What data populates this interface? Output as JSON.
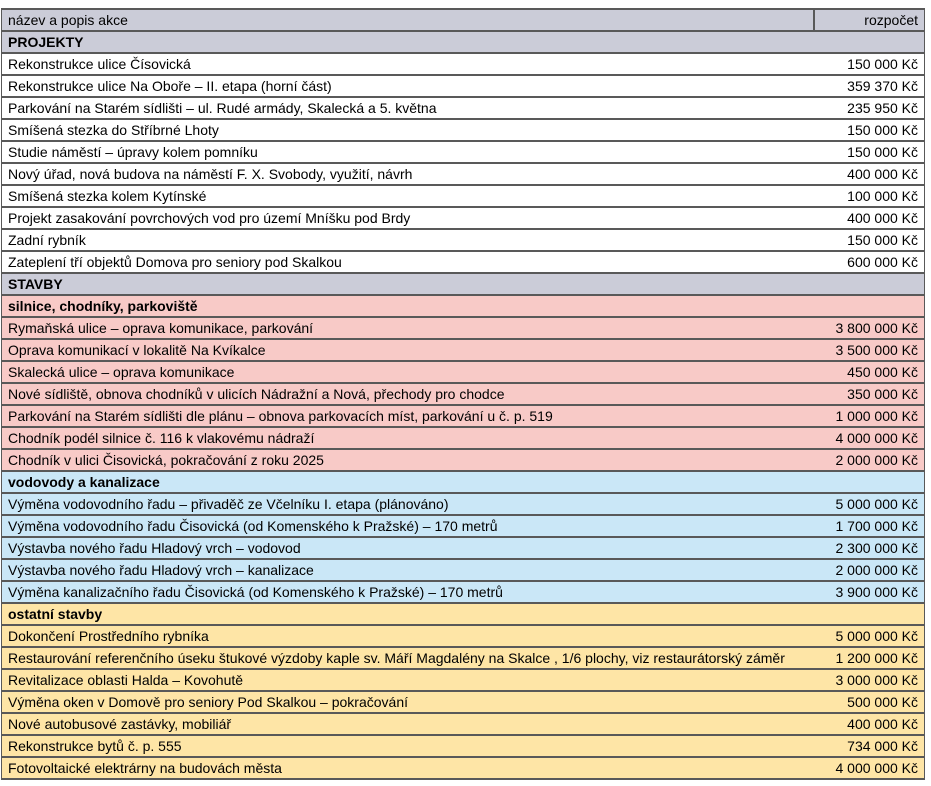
{
  "table": {
    "border_color": "#595959",
    "styles": {
      "gray": "#cbccd8",
      "pink": "#f8cac7",
      "blue": "#cae7f7",
      "yellow": "#fee5a6",
      "white": "#ffffff"
    },
    "columns": [
      {
        "key": "name",
        "label": "název a popis akce"
      },
      {
        "key": "budget",
        "label": "rozpočet"
      }
    ],
    "rows": [
      {
        "kind": "section",
        "style": "gray",
        "name": "PROJEKTY",
        "budget": ""
      },
      {
        "kind": "item",
        "style": "white",
        "name": "Rekonstrukce ulice Čísovická",
        "budget": "150 000 Kč"
      },
      {
        "kind": "item",
        "style": "white",
        "name": "Rekonstrukce ulice Na Oboře – II. etapa (horní část)",
        "budget": "359 370 Kč"
      },
      {
        "kind": "item",
        "style": "white",
        "name": "Parkování na Starém sídlišti – ul. Rudé armády, Skalecká a 5. května",
        "budget": "235 950 Kč"
      },
      {
        "kind": "item",
        "style": "white",
        "name": "Smíšená stezka do Stříbrné Lhoty",
        "budget": "150 000 Kč"
      },
      {
        "kind": "item",
        "style": "white",
        "name": "Studie náměstí – úpravy kolem pomníku",
        "budget": "150 000 Kč"
      },
      {
        "kind": "item",
        "style": "white",
        "name": "Nový úřad, nová budova na náměstí F. X. Svobody, využití, návrh",
        "budget": "400 000 Kč"
      },
      {
        "kind": "item",
        "style": "white",
        "name": "Smíšená stezka kolem Kytínské",
        "budget": "100 000 Kč"
      },
      {
        "kind": "item",
        "style": "white",
        "name": "Projekt zasakování povrchových vod pro území Mníšku pod Brdy",
        "budget": "400 000 Kč"
      },
      {
        "kind": "item",
        "style": "white",
        "name": "Zadní rybník",
        "budget": "150 000 Kč"
      },
      {
        "kind": "item",
        "style": "white",
        "name": "Zateplení tří objektů Domova pro seniory pod Skalkou",
        "budget": "600 000 Kč"
      },
      {
        "kind": "section",
        "style": "gray",
        "name": "STAVBY",
        "budget": ""
      },
      {
        "kind": "section",
        "style": "pink",
        "name": "silnice, chodníky, parkoviště",
        "budget": ""
      },
      {
        "kind": "item",
        "style": "pink",
        "name": "Rymaňská ulice – oprava komunikace, parkování",
        "budget": "3 800 000 Kč"
      },
      {
        "kind": "item",
        "style": "pink",
        "name": "Oprava komunikací v lokalitě Na Kvíkalce",
        "budget": "3 500 000 Kč"
      },
      {
        "kind": "item",
        "style": "pink",
        "name": "Skalecká ulice – oprava komunikace",
        "budget": "450 000 Kč"
      },
      {
        "kind": "item",
        "style": "pink",
        "name": "Nové sídliště, obnova chodníků v ulicích Nádražní a Nová, přechody pro chodce",
        "budget": "350 000 Kč"
      },
      {
        "kind": "item",
        "style": "pink",
        "name": "Parkování na Starém sídlišti dle plánu – obnova parkovacích míst, parkování u č. p. 519",
        "budget": "1 000 000 Kč"
      },
      {
        "kind": "item",
        "style": "pink",
        "name": "Chodník podél silnice č. 116 k vlakovému nádraží",
        "budget": "4 000 000 Kč"
      },
      {
        "kind": "item",
        "style": "pink",
        "name": "Chodník v ulici Čisovická, pokračování z roku 2025",
        "budget": "2 000 000 Kč"
      },
      {
        "kind": "section",
        "style": "blue",
        "name": "vodovody a kanalizace",
        "budget": ""
      },
      {
        "kind": "item",
        "style": "blue",
        "name": "Výměna vodovodního řadu – přivaděč ze Včelníku I. etapa (plánováno)",
        "budget": "5 000 000 Kč"
      },
      {
        "kind": "item",
        "style": "blue",
        "name": "Výměna vodovodního řadu Čisovická (od Komenského k Pražské) – 170 metrů",
        "budget": "1 700 000 Kč"
      },
      {
        "kind": "item",
        "style": "blue",
        "name": "Výstavba nového řadu Hladový vrch – vodovod",
        "budget": "2 300 000 Kč"
      },
      {
        "kind": "item",
        "style": "blue",
        "name": "Výstavba nového řadu Hladový vrch – kanalizace",
        "budget": "2 000 000 Kč"
      },
      {
        "kind": "item",
        "style": "blue",
        "name": "Výměna kanalizačního řadu Čisovická (od Komenského k Pražské) – 170 metrů",
        "budget": "3 900 000 Kč"
      },
      {
        "kind": "section",
        "style": "yellow",
        "name": "ostatní stavby",
        "budget": ""
      },
      {
        "kind": "item",
        "style": "yellow",
        "name": "Dokončení Prostředního rybníka",
        "budget": "5 000 000 Kč"
      },
      {
        "kind": "item",
        "style": "yellow",
        "name": "Restaurování referenčního úseku štukové výzdoby kaple sv. Máří Magdalény na Skalce , 1/6 plochy, viz restaurátorský záměr",
        "budget": "1 200 000 Kč"
      },
      {
        "kind": "item",
        "style": "yellow",
        "name": "Revitalizace oblasti Halda – Kovohutě",
        "budget": "3 000 000 Kč"
      },
      {
        "kind": "item",
        "style": "yellow",
        "name": "Výměna oken v Domově pro seniory Pod Skalkou – pokračování",
        "budget": "500 000 Kč"
      },
      {
        "kind": "item",
        "style": "yellow",
        "name": "Nové autobusové zastávky, mobiliář",
        "budget": "400 000 Kč"
      },
      {
        "kind": "item",
        "style": "yellow",
        "name": "Rekonstrukce bytů č. p. 555",
        "budget": "734 000 Kč"
      },
      {
        "kind": "item",
        "style": "yellow",
        "name": "Fotovoltaické elektrárny na budovách města",
        "budget": "4 000 000 Kč"
      }
    ]
  }
}
